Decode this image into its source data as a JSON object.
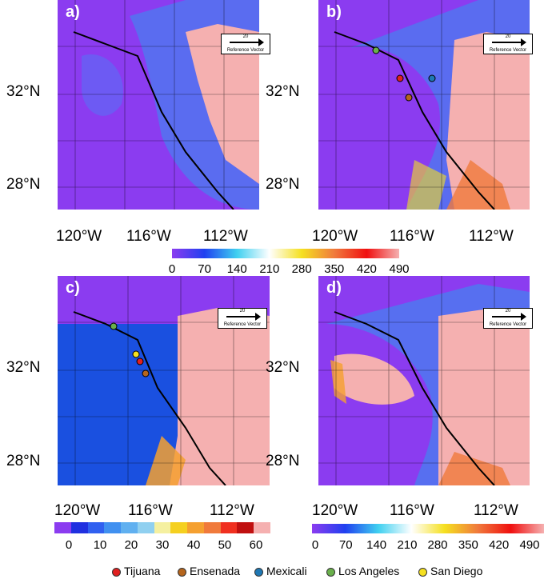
{
  "panels": [
    {
      "label": "a)",
      "ref_value": "20",
      "ref_label": "Reference Vector"
    },
    {
      "label": "b)",
      "ref_value": "20",
      "ref_label": "Reference Vector"
    },
    {
      "label": "c)",
      "ref_value": "20",
      "ref_label": "Reference Vector"
    },
    {
      "label": "d)",
      "ref_value": "20",
      "ref_label": "Reference Vector"
    }
  ],
  "axes": {
    "lat_labels": [
      "32°N",
      "28°N"
    ],
    "lon_labels": [
      "120°W",
      "116°W",
      "112°W"
    ]
  },
  "colorbars": {
    "top": {
      "ticks": [
        "0",
        "70",
        "140",
        "210",
        "280",
        "350",
        "420",
        "490"
      ]
    },
    "left": {
      "ticks": [
        "0",
        "10",
        "20",
        "30",
        "40",
        "50",
        "60"
      ]
    },
    "right": {
      "ticks": [
        "0",
        "70",
        "140",
        "210",
        "280",
        "350",
        "420",
        "490"
      ]
    }
  },
  "legend": {
    "items": [
      {
        "label": "Tijuana",
        "color": "#e02020"
      },
      {
        "label": "Ensenada",
        "color": "#b5651d"
      },
      {
        "label": "Mexicali",
        "color": "#1f78b4"
      },
      {
        "label": "Los Angeles",
        "color": "#6ab04c"
      },
      {
        "label": "San Diego",
        "color": "#f5e020"
      }
    ]
  }
}
